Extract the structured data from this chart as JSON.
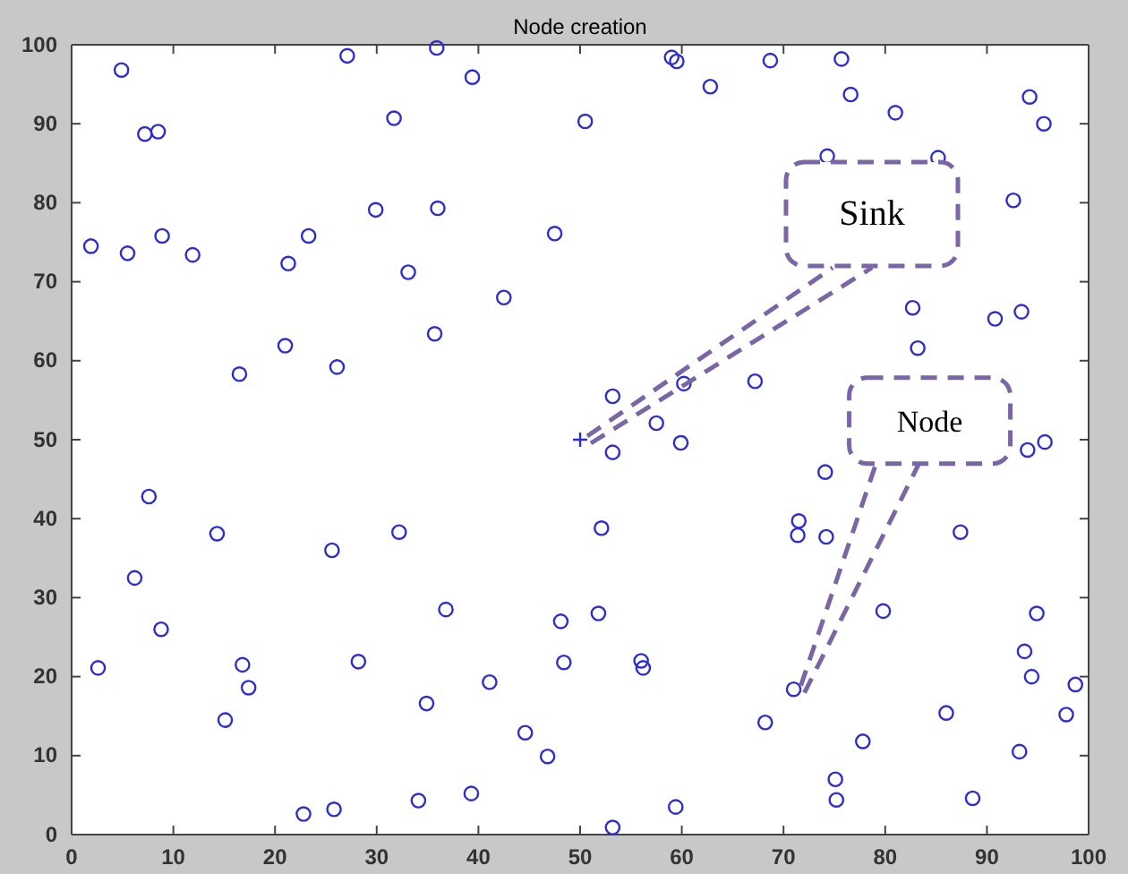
{
  "chart_data": {
    "type": "scatter",
    "title": "Node creation",
    "xlim": [
      0,
      100
    ],
    "xticks": [
      0,
      10,
      20,
      30,
      40,
      50,
      60,
      70,
      80,
      90,
      100
    ],
    "ylim": [
      0,
      100
    ],
    "yticks": [
      0,
      10,
      20,
      30,
      40,
      50,
      60,
      70,
      80,
      90,
      100
    ],
    "grid": false,
    "annotations": [
      {
        "text": "Sink",
        "x": 50,
        "y": 50
      },
      {
        "text": "Node",
        "x": 71,
        "y": 18.4
      }
    ],
    "series": [
      {
        "marker": "circle",
        "color": "#2e2ed0",
        "x": [
          1.9,
          4.9,
          5.5,
          7.2,
          8.5,
          8.9,
          11.9,
          16.5,
          21,
          21.3,
          23.3,
          26.1,
          27.1,
          29.9,
          31.7,
          33.1,
          35.7,
          36,
          35.9,
          39.4,
          42.5,
          47.5,
          50.5,
          59,
          59.5,
          62.8,
          68.7,
          75.7,
          76.6,
          81,
          94.2,
          95.6,
          74.3,
          85.2,
          92.6,
          82.7,
          90.8,
          93.4,
          83.2,
          67.2,
          60.2,
          53.2,
          57.5,
          53.2,
          59.9,
          94,
          95.7,
          74.1,
          52.1,
          71.5,
          71.4,
          74.2,
          87.4,
          51.8,
          79.8,
          94.9,
          56,
          56.2,
          93.7,
          94.4,
          98.7,
          71,
          68.2,
          86,
          97.8,
          77.8,
          93.2,
          75.1,
          75.2,
          88.6,
          59.4,
          53.2,
          2.6,
          7.6,
          6.2,
          8.8,
          14.3,
          16.8,
          17.4,
          15.1,
          25.6,
          28.2,
          32.2,
          36.8,
          22.8,
          25.8,
          34.1,
          39.3,
          34.9,
          41.1,
          44.6,
          46.8,
          48.1,
          48.4
        ],
        "values": [
          74.5,
          96.8,
          73.6,
          88.7,
          89,
          75.8,
          73.4,
          58.3,
          61.9,
          72.3,
          75.8,
          59.2,
          98.6,
          79.1,
          90.7,
          71.2,
          63.4,
          79.3,
          99.6,
          95.9,
          68,
          76.1,
          90.3,
          98.4,
          97.9,
          94.7,
          98,
          98.2,
          93.7,
          91.4,
          93.4,
          90,
          85.9,
          85.7,
          80.3,
          66.7,
          65.3,
          66.2,
          61.6,
          57.4,
          57.1,
          55.5,
          52.1,
          48.4,
          49.6,
          48.7,
          49.7,
          45.9,
          38.8,
          39.7,
          37.9,
          37.7,
          38.3,
          28,
          28.3,
          28,
          22,
          21.1,
          23.2,
          20,
          19,
          18.4,
          14.2,
          15.4,
          15.2,
          11.8,
          10.5,
          7,
          4.4,
          4.6,
          3.5,
          0.9,
          21.1,
          42.8,
          32.5,
          26,
          38.1,
          21.5,
          18.6,
          14.5,
          36,
          21.9,
          38.3,
          28.5,
          2.6,
          3.2,
          4.3,
          5.2,
          16.6,
          19.3,
          12.9,
          9.9,
          27,
          21.8
        ]
      },
      {
        "marker": "cross",
        "color": "#2e2ed0",
        "x": [
          50
        ],
        "values": [
          50
        ]
      }
    ]
  }
}
